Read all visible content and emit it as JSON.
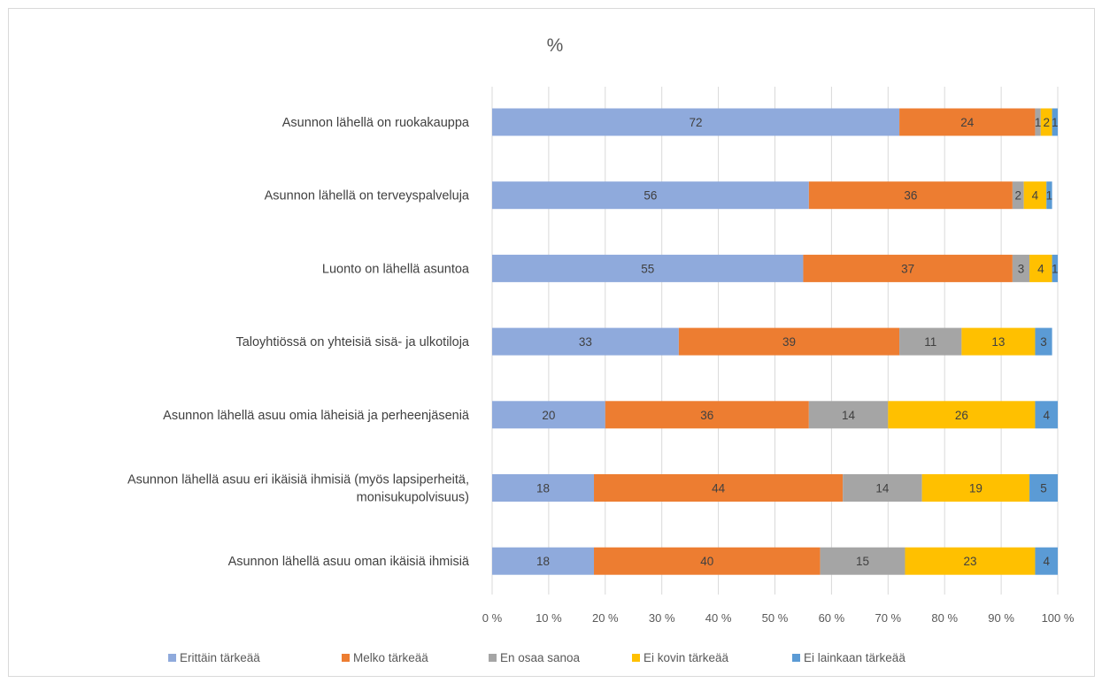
{
  "chart_data": {
    "type": "bar",
    "orientation": "horizontal",
    "stacked": "percent",
    "title": "%",
    "categories": [
      [
        "Asunnon lähellä on ruokakauppa"
      ],
      [
        "Asunnon lähellä on terveyspalveluja"
      ],
      [
        "Luonto on lähellä asuntoa"
      ],
      [
        "Taloyhtiössä on yhteisiä sisä- ja ulkotiloja"
      ],
      [
        "Asunnon lähellä asuu omia läheisiä ja perheenjäseniä"
      ],
      [
        "Asunnon lähellä asuu eri ikäisiä ihmisiä (myös lapsiperheitä,",
        "monisukupolvisuus)"
      ],
      [
        "Asunnon lähellä asuu oman ikäisiä ihmisiä"
      ]
    ],
    "series": [
      {
        "name": "Erittäin tärkeää",
        "color": "#8faadc",
        "values": [
          72,
          56,
          55,
          33,
          20,
          18,
          18
        ]
      },
      {
        "name": "Melko tärkeää",
        "color": "#ed7d31",
        "values": [
          24,
          36,
          37,
          39,
          36,
          44,
          40
        ]
      },
      {
        "name": "En osaa sanoa",
        "color": "#a5a5a5",
        "values": [
          1,
          2,
          3,
          11,
          14,
          14,
          15
        ]
      },
      {
        "name": "Ei kovin tärkeää",
        "color": "#ffc000",
        "values": [
          2,
          4,
          4,
          13,
          26,
          19,
          23
        ]
      },
      {
        "name": "Ei lainkaan tärkeää",
        "color": "#5b9bd5",
        "values": [
          1,
          1,
          1,
          3,
          4,
          5,
          4
        ]
      }
    ],
    "data_labels": [
      [
        "72",
        "24",
        "1",
        "2",
        "1"
      ],
      [
        "56",
        "36",
        "2",
        "4",
        "1"
      ],
      [
        "55",
        "37",
        "3",
        "4",
        "1"
      ],
      [
        "33",
        "39",
        "11",
        "13",
        "3"
      ],
      [
        "20",
        "36",
        "14",
        "26",
        "4"
      ],
      [
        "18",
        "44",
        "14",
        "19",
        "5"
      ],
      [
        "18",
        "40",
        "15",
        "23",
        "4"
      ]
    ],
    "xlim": [
      0,
      100
    ],
    "x_ticks": [
      "0 %",
      "10 %",
      "20 %",
      "30 %",
      "40 %",
      "50 %",
      "60 %",
      "70 %",
      "80 %",
      "90 %",
      "100 %"
    ],
    "grid": true,
    "legend_position": "bottom"
  }
}
